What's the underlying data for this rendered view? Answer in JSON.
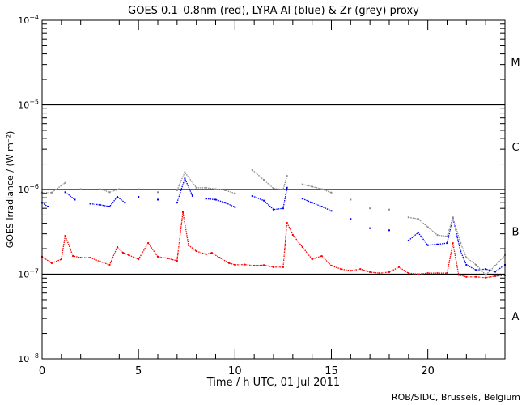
{
  "chart_data": {
    "type": "scatter",
    "title": "GOES 0.1–0.8nm (red), LYRA Al (blue) & Zr (grey) proxy",
    "xlabel": "Time / h UTC, 01 Jul 2011",
    "ylabel": "GOES Irradiance / (W m⁻²)",
    "xlim": [
      0,
      24
    ],
    "ylim": [
      1e-08,
      0.0001
    ],
    "yscale": "log",
    "xticks": [
      0,
      5,
      10,
      15,
      20
    ],
    "xtick_labels": [
      "0",
      "5",
      "10",
      "15",
      "20"
    ],
    "yticks": [
      {
        "value": 0.0001,
        "base": "10",
        "exp": "−4"
      },
      {
        "value": 1e-05,
        "base": "10",
        "exp": "−5"
      },
      {
        "value": 1e-06,
        "base": "10",
        "exp": "−6"
      },
      {
        "value": 1e-07,
        "base": "10",
        "exp": "−7"
      },
      {
        "value": 1e-08,
        "base": "10",
        "exp": "−8"
      }
    ],
    "class_lines": [
      1e-05,
      1e-06,
      1e-07
    ],
    "flare_classes": [
      {
        "label": "M",
        "value": 3.2e-05
      },
      {
        "label": "C",
        "value": 3.2e-06
      },
      {
        "label": "B",
        "value": 3.2e-07
      },
      {
        "label": "A",
        "value": 3.2e-08
      }
    ],
    "series": [
      {
        "name": "GOES 0.1-0.8nm",
        "color": "#ff0000",
        "x": [
          0,
          0.5,
          1.0,
          1.2,
          1.6,
          2.0,
          2.5,
          3.0,
          3.5,
          3.9,
          4.2,
          4.5,
          5.0,
          5.5,
          6.0,
          6.5,
          7.0,
          7.3,
          7.6,
          8.0,
          8.5,
          8.8,
          9.2,
          9.7,
          10.0,
          10.5,
          11.0,
          11.5,
          12.0,
          12.5,
          12.7,
          13.0,
          13.5,
          14.0,
          14.5,
          15.0,
          15.5,
          16.0,
          16.5,
          17.0,
          17.5,
          18.0,
          18.5,
          19.0,
          19.5,
          20.0,
          20.5,
          21.0,
          21.3,
          21.6,
          22.0,
          22.5,
          23.0,
          23.5,
          24.0
        ],
        "y": [
          1.61e-07,
          1.35e-07,
          1.5e-07,
          2.85e-07,
          1.64e-07,
          1.57e-07,
          1.57e-07,
          1.41e-07,
          1.29e-07,
          2.09e-07,
          1.79e-07,
          1.68e-07,
          1.5e-07,
          2.33e-07,
          1.61e-07,
          1.54e-07,
          1.44e-07,
          5.4e-07,
          2.19e-07,
          1.87e-07,
          1.72e-07,
          1.79e-07,
          1.57e-07,
          1.35e-07,
          1.29e-07,
          1.3e-07,
          1.26e-07,
          1.28e-07,
          1.21e-07,
          1.21e-07,
          4.05e-07,
          2.91e-07,
          2.09e-07,
          1.5e-07,
          1.64e-07,
          1.26e-07,
          1.15e-07,
          1.1e-07,
          1.15e-07,
          1.06e-07,
          1.03e-07,
          1.06e-07,
          1.21e-07,
          1.03e-07,
          1e-07,
          1.03e-07,
          1.03e-07,
          1.03e-07,
          2.33e-07,
          9.8e-08,
          9.3e-08,
          9.3e-08,
          9.1e-08,
          9.5e-08,
          9.7e-08
        ]
      },
      {
        "name": "LYRA Al proxy",
        "color": "#0000ff",
        "x": [
          0,
          0.3,
          1.2,
          1.7,
          2.5,
          3.0,
          3.5,
          3.9,
          4.3,
          5.0,
          6.0,
          7.0,
          7.4,
          7.8,
          8.5,
          9.0,
          9.5,
          10.0,
          10.9,
          11.5,
          12.0,
          12.5,
          12.7,
          13.5,
          14.0,
          14.5,
          15.0,
          16.0,
          17.0,
          18.0,
          19.0,
          19.5,
          20.0,
          20.5,
          21.0,
          21.3,
          21.7,
          22.0,
          22.5,
          23.0,
          23.5,
          24.0
        ],
        "y": [
          7e-07,
          6.3e-07,
          9.3e-07,
          7.6e-07,
          6.8e-07,
          6.6e-07,
          6.3e-07,
          8.2e-07,
          7e-07,
          8.2e-07,
          7.6e-07,
          7e-07,
          1.35e-06,
          8.4e-07,
          7.8e-07,
          7.6e-07,
          7e-07,
          6.2e-07,
          8.4e-07,
          7.4e-07,
          5.8e-07,
          6e-07,
          1.05e-06,
          7.8e-07,
          7e-07,
          6.3e-07,
          5.6e-07,
          4.5e-07,
          3.5e-07,
          3.3e-07,
          2.5e-07,
          3.1e-07,
          2.2e-07,
          2.25e-07,
          2.33e-07,
          4.6e-07,
          1.86e-07,
          1.29e-07,
          1.12e-07,
          1.15e-07,
          1.07e-07,
          1.29e-07
        ]
      },
      {
        "name": "LYRA Zr proxy",
        "color": "#8c8c8c",
        "x": [
          0,
          0.5,
          1.2,
          2.0,
          3.0,
          3.5,
          4.0,
          5.0,
          6.0,
          7.0,
          7.4,
          8.0,
          8.5,
          9.0,
          9.5,
          10.0,
          10.9,
          11.5,
          12.0,
          12.5,
          12.7,
          13.5,
          14.0,
          14.5,
          15.0,
          16.0,
          17.0,
          18.0,
          19.0,
          19.5,
          20.0,
          20.5,
          21.0,
          21.3,
          21.7,
          22.0,
          22.5,
          23.0,
          23.5,
          24.0
        ],
        "y": [
          9.2e-07,
          9.2e-07,
          1.2e-06,
          1.01e-06,
          1.01e-06,
          9.3e-07,
          1.01e-06,
          1.01e-06,
          9.3e-07,
          9.8e-07,
          1.6e-06,
          1.05e-06,
          1.05e-06,
          1.01e-06,
          9.8e-07,
          9e-07,
          1.7e-06,
          1.3e-06,
          1.03e-06,
          1e-06,
          1.45e-06,
          1.15e-06,
          1.08e-06,
          1.01e-06,
          9.2e-07,
          7.6e-07,
          6e-07,
          5.8e-07,
          4.7e-07,
          4.5e-07,
          3.6e-07,
          2.9e-07,
          2.8e-07,
          4.7e-07,
          2.33e-07,
          1.57e-07,
          1.29e-07,
          9.8e-08,
          1.26e-07,
          1.68e-07
        ]
      }
    ],
    "credit": "ROB/SIDC, Brussels, Belgium"
  }
}
